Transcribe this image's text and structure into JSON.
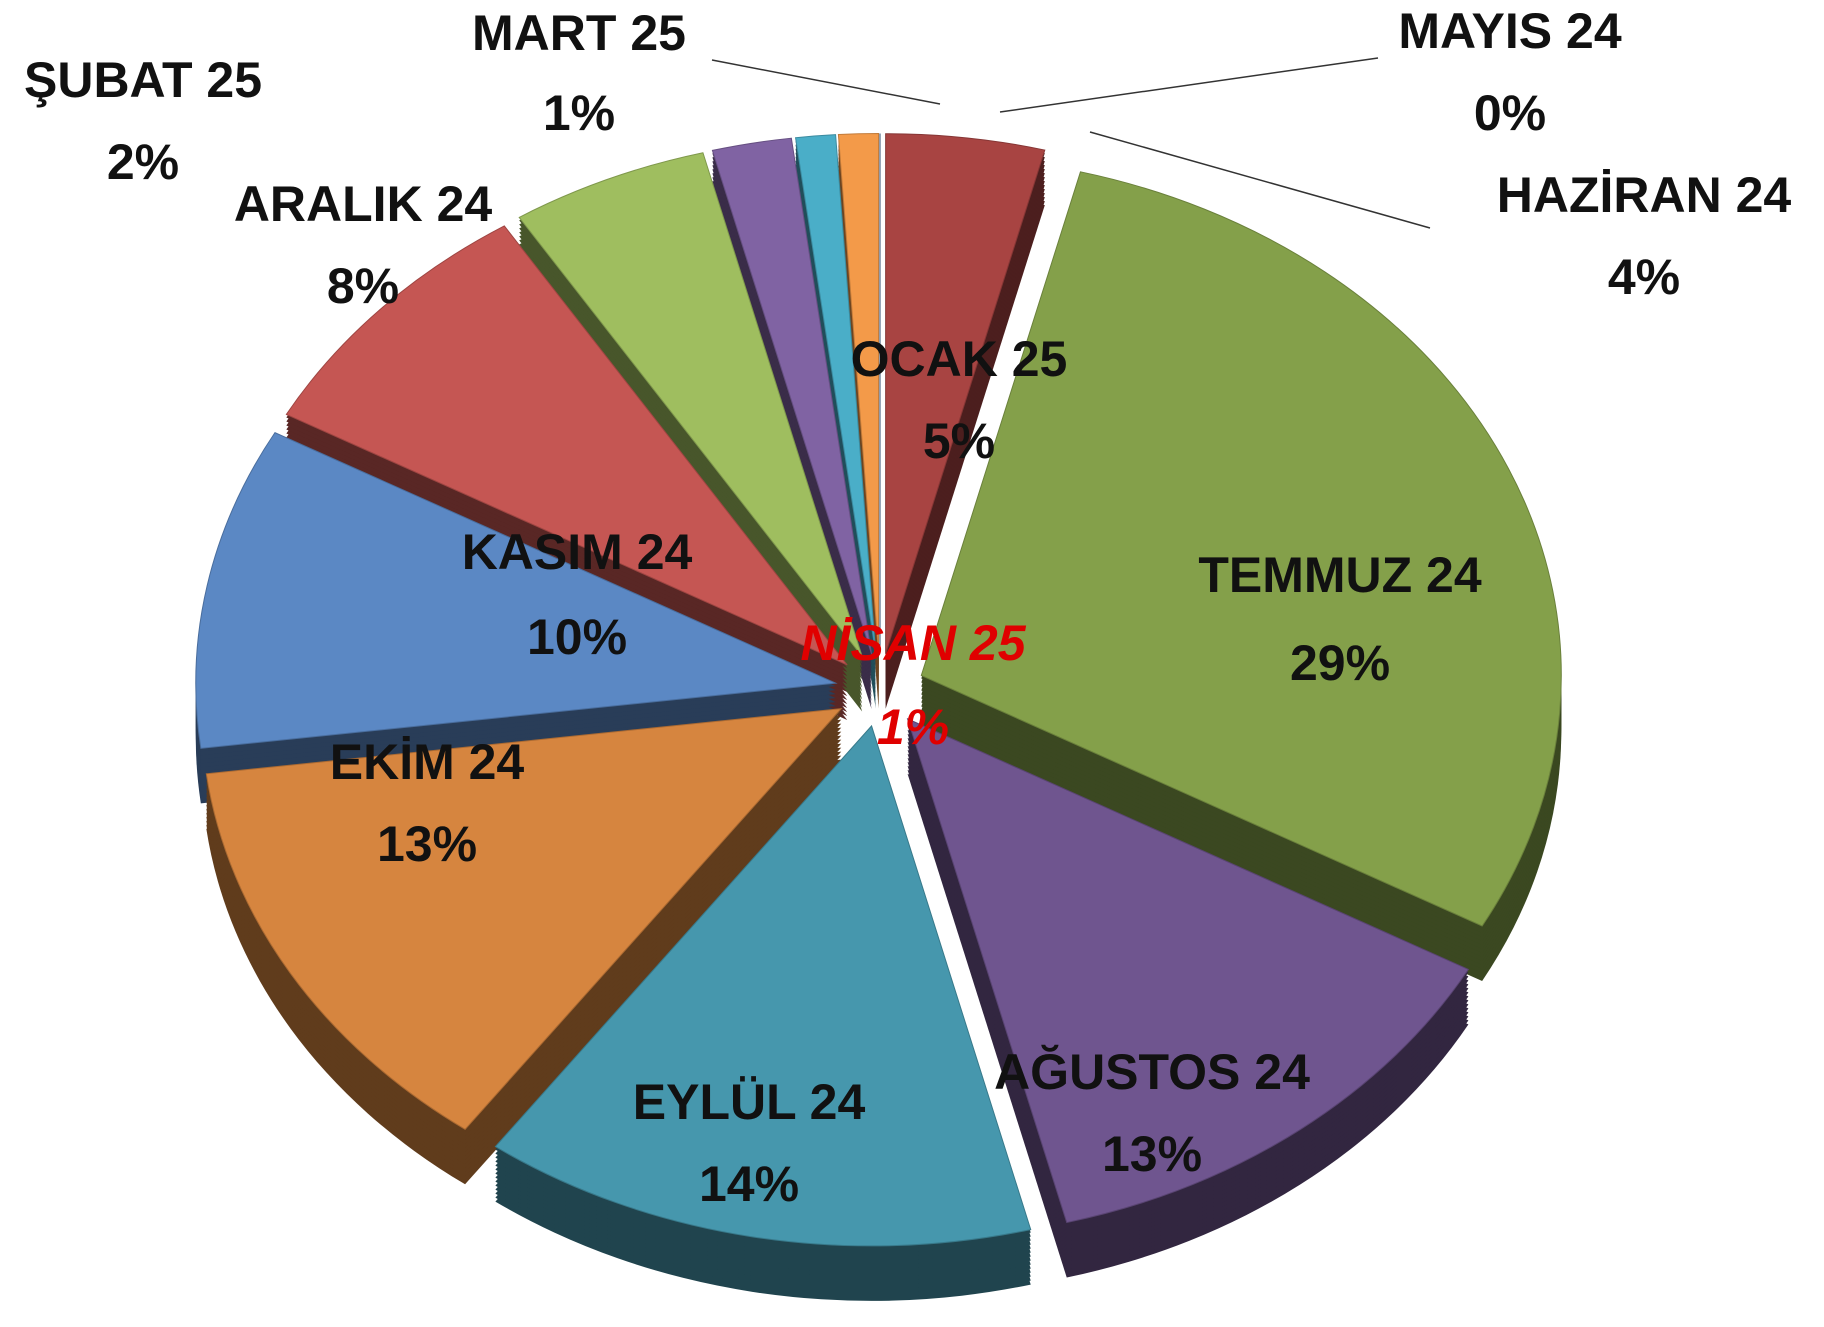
{
  "chart_data": {
    "type": "pie",
    "categories": [
      "MAYIS 24",
      "HAZİRAN 24",
      "TEMMUZ 24",
      "AĞUSTOS 24",
      "EYLÜL 24",
      "EKİM 24",
      "KASIM 24",
      "ARALIK 24",
      "OCAK 25",
      "ŞUBAT 25",
      "MART 25",
      "NİSAN 25"
    ],
    "values": [
      0,
      4,
      29,
      13,
      14,
      13,
      10,
      8,
      5,
      2,
      1,
      1
    ],
    "value_labels": [
      "0%",
      "4%",
      "29%",
      "13%",
      "14%",
      "13%",
      "10%",
      "8%",
      "5%",
      "2%",
      "1%",
      "1%"
    ],
    "colors": [
      "#3b5f8f",
      "#a84442",
      "#84a04a",
      "#6f558f",
      "#4697ad",
      "#d6853f",
      "#5b88c4",
      "#c55653",
      "#9fbe5f",
      "#8063a3",
      "#4aaec8",
      "#f39a49"
    ]
  }
}
